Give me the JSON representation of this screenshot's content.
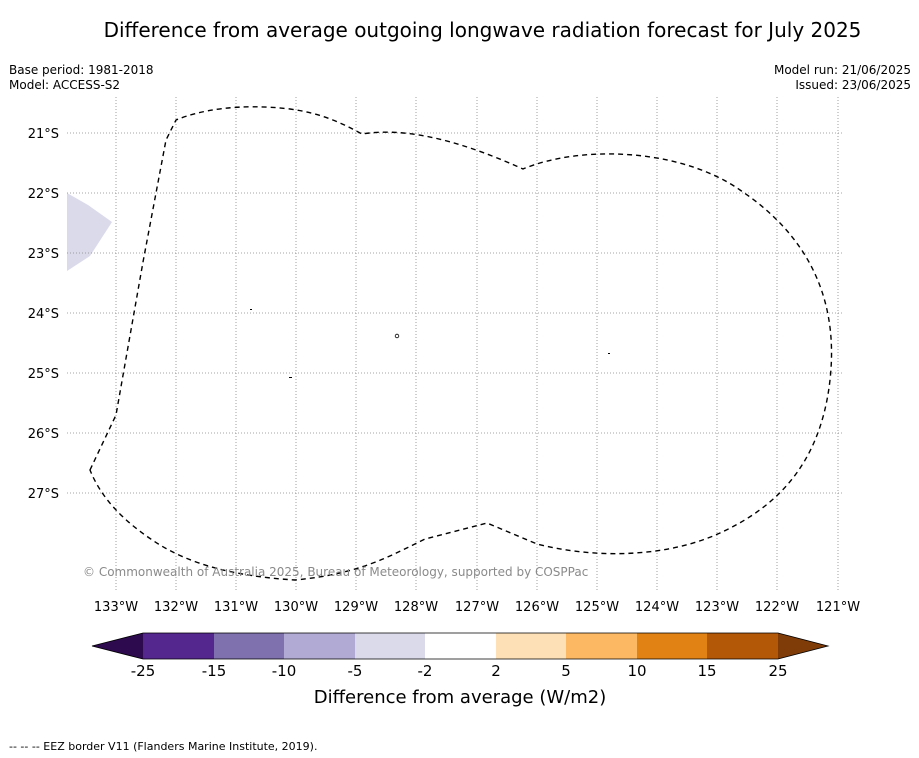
{
  "header": {
    "title": "Difference from average outgoing longwave radiation forecast for July 2025",
    "base_period": "Base period: 1981-2018",
    "model": "Model: ACCESS-S2",
    "model_run": "Model run: 21/06/2025",
    "issued": "Issued: 23/06/2025"
  },
  "map": {
    "lon_labels": [
      "133°W",
      "132°W",
      "131°W",
      "130°W",
      "129°W",
      "128°W",
      "127°W",
      "126°W",
      "125°W",
      "124°W",
      "123°W",
      "122°W",
      "121°W"
    ],
    "lat_labels": [
      "21°S",
      "22°S",
      "23°S",
      "24°S",
      "25°S",
      "26°S",
      "27°S"
    ],
    "copyright": "© Commonwealth of Australia 2025, Bureau of Meteorology, supported by COSPPac",
    "shaded_region_category": "-5 to -2",
    "eez_line_style": "dashed black",
    "gridlines": "dotted grey"
  },
  "colorbar": {
    "title": "Difference from average (W/m2)",
    "tick_labels": [
      "-25",
      "-15",
      "-10",
      "-5",
      "-2",
      "2",
      "5",
      "10",
      "15",
      "25"
    ],
    "colors": [
      "#2d0a4e",
      "#54278f",
      "#7f71ad",
      "#b1aad4",
      "#dadaeb",
      "#ffffff",
      "#fee0b6",
      "#fdb863",
      "#e08214",
      "#b35806",
      "#7f3b08"
    ],
    "extend": "both"
  },
  "footer": {
    "legend": "-- -- -- EEZ border V11 (Flanders Marine Institute, 2019)."
  }
}
